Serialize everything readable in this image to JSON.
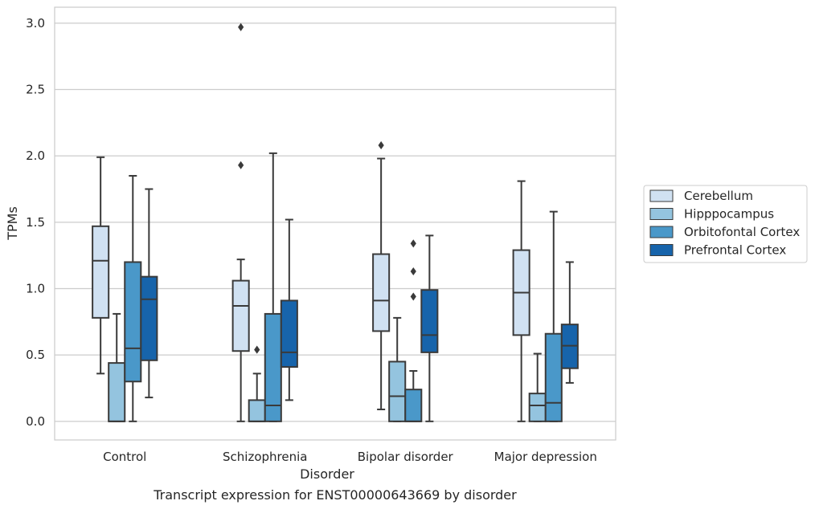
{
  "chart_data": {
    "type": "box",
    "title": "",
    "caption": "Transcript expression for ENST00000643669 by disorder",
    "xlabel": "Disorder",
    "ylabel": "TPMs",
    "ylim": [
      -0.14,
      3.12
    ],
    "yticks": [
      0.0,
      0.5,
      1.0,
      1.5,
      2.0,
      2.5,
      3.0
    ],
    "ytick_labels": [
      "0.0",
      "0.5",
      "1.0",
      "1.5",
      "2.0",
      "2.5",
      "3.0"
    ],
    "grid": "horizontal",
    "legend_position": "right",
    "categories": [
      "Control",
      "Schizophrenia",
      "Bipolar disorder",
      "Major depression"
    ],
    "series": [
      {
        "name": "Cerebellum",
        "color": "#d0e1f2",
        "boxes": [
          {
            "whislo": 0.36,
            "q1": 0.78,
            "med": 1.21,
            "q3": 1.47,
            "whishi": 1.99,
            "fliers": []
          },
          {
            "whislo": 0.0,
            "q1": 0.53,
            "med": 0.87,
            "q3": 1.06,
            "whishi": 1.22,
            "fliers": [
              1.93,
              2.97
            ]
          },
          {
            "whislo": 0.09,
            "q1": 0.68,
            "med": 0.91,
            "q3": 1.26,
            "whishi": 1.98,
            "fliers": [
              2.08
            ]
          },
          {
            "whislo": 0.0,
            "q1": 0.65,
            "med": 0.97,
            "q3": 1.29,
            "whishi": 1.81,
            "fliers": []
          }
        ]
      },
      {
        "name": "Hipppocampus",
        "color": "#94c4df",
        "boxes": [
          {
            "whislo": 0.0,
            "q1": 0.0,
            "med": 0.0,
            "q3": 0.44,
            "whishi": 0.81,
            "fliers": []
          },
          {
            "whislo": 0.0,
            "q1": 0.0,
            "med": 0.0,
            "q3": 0.16,
            "whishi": 0.36,
            "fliers": [
              0.54
            ]
          },
          {
            "whislo": 0.0,
            "q1": 0.0,
            "med": 0.19,
            "q3": 0.45,
            "whishi": 0.78,
            "fliers": []
          },
          {
            "whislo": 0.0,
            "q1": 0.0,
            "med": 0.12,
            "q3": 0.21,
            "whishi": 0.51,
            "fliers": []
          }
        ]
      },
      {
        "name": "Orbitofontal Cortex",
        "color": "#4a98c9",
        "boxes": [
          {
            "whislo": 0.0,
            "q1": 0.3,
            "med": 0.55,
            "q3": 1.2,
            "whishi": 1.85,
            "fliers": []
          },
          {
            "whislo": 0.0,
            "q1": 0.0,
            "med": 0.12,
            "q3": 0.81,
            "whishi": 2.02,
            "fliers": []
          },
          {
            "whislo": 0.0,
            "q1": 0.0,
            "med": 0.0,
            "q3": 0.24,
            "whishi": 0.38,
            "fliers": [
              0.94,
              1.13,
              1.34
            ]
          },
          {
            "whislo": 0.0,
            "q1": 0.0,
            "med": 0.14,
            "q3": 0.66,
            "whishi": 1.58,
            "fliers": []
          }
        ]
      },
      {
        "name": "Prefrontal Cortex",
        "color": "#1764ab",
        "boxes": [
          {
            "whislo": 0.18,
            "q1": 0.46,
            "med": 0.92,
            "q3": 1.09,
            "whishi": 1.75,
            "fliers": []
          },
          {
            "whislo": 0.16,
            "q1": 0.41,
            "med": 0.52,
            "q3": 0.91,
            "whishi": 1.52,
            "fliers": []
          },
          {
            "whislo": 0.0,
            "q1": 0.52,
            "med": 0.65,
            "q3": 0.99,
            "whishi": 1.4,
            "fliers": []
          },
          {
            "whislo": 0.29,
            "q1": 0.4,
            "med": 0.57,
            "q3": 0.73,
            "whishi": 1.2,
            "fliers": []
          }
        ]
      }
    ]
  }
}
